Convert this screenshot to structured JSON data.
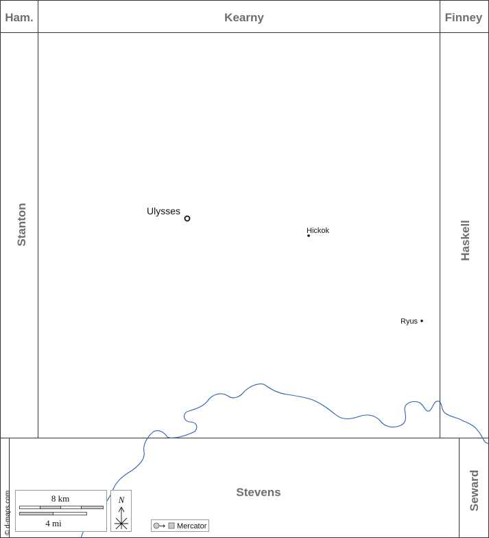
{
  "counties": {
    "north_west": "Ham.",
    "north": "Kearny",
    "north_east": "Finney",
    "west": "Stanton",
    "east": "Haskell",
    "south": "Stevens",
    "south_east": "Seward"
  },
  "places": {
    "seat": "Ulysses",
    "town_1": "Hickok",
    "town_2": "Ryus"
  },
  "scale": {
    "km_label": "8 km",
    "mi_label": "4 mi"
  },
  "north_arrow": {
    "label": "N"
  },
  "projection": {
    "label": "Mercator"
  },
  "credit": "© d-maps.com",
  "colors": {
    "border": "#333333",
    "river": "#2a5fb0",
    "county_label": "#6e6e6e",
    "background": "#ffffff"
  }
}
